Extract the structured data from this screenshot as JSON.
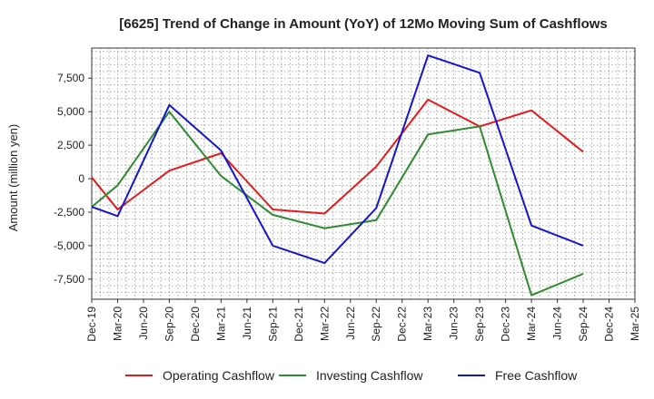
{
  "chart_data": {
    "type": "line",
    "title": "[6625]  Trend of Change in Amount (YoY) of 12Mo Moving Sum of Cashflows",
    "ylabel": "Amount (million yen)",
    "xlabel": "",
    "x": [
      "Dec-19",
      "Mar-20",
      "Jun-20",
      "Sep-20",
      "Dec-20",
      "Mar-21",
      "Jun-21",
      "Sep-21",
      "Dec-21",
      "Mar-22",
      "Jun-22",
      "Sep-22",
      "Dec-22",
      "Mar-23",
      "Jun-23",
      "Sep-23",
      "Dec-23",
      "Mar-24",
      "Jun-24",
      "Sep-24",
      "Dec-24",
      "Mar-25"
    ],
    "ylim": [
      -9000,
      9750
    ],
    "yticks": [
      -7500,
      -5000,
      -2500,
      0,
      2500,
      5000,
      7500
    ],
    "ytick_labels": [
      "-7,500",
      "-5,000",
      "-2,500",
      "0",
      "2,500",
      "5,000",
      "7,500"
    ],
    "grid": true,
    "legend_position": "bottom",
    "series": [
      {
        "name": "Operating Cashflow",
        "color": "#e41a1c",
        "values": [
          100,
          -2300,
          null,
          600,
          null,
          1900,
          null,
          -2300,
          null,
          -2600,
          null,
          900,
          null,
          5900,
          null,
          3900,
          null,
          5100,
          null,
          2000,
          null,
          null
        ]
      },
      {
        "name": "Investing Cashflow",
        "color": "#2e8b2e",
        "values": [
          -2100,
          -500,
          null,
          5000,
          null,
          200,
          null,
          -2700,
          null,
          -3700,
          null,
          -3100,
          null,
          3300,
          null,
          3900,
          null,
          -8700,
          null,
          -7100,
          null,
          null
        ]
      },
      {
        "name": "Free Cashflow",
        "color": "#1515cc",
        "values": [
          -2100,
          -2800,
          null,
          5500,
          null,
          2100,
          null,
          -5000,
          null,
          -6300,
          null,
          -2200,
          null,
          9200,
          null,
          7900,
          null,
          -3500,
          null,
          -5000,
          null,
          null
        ]
      }
    ]
  }
}
